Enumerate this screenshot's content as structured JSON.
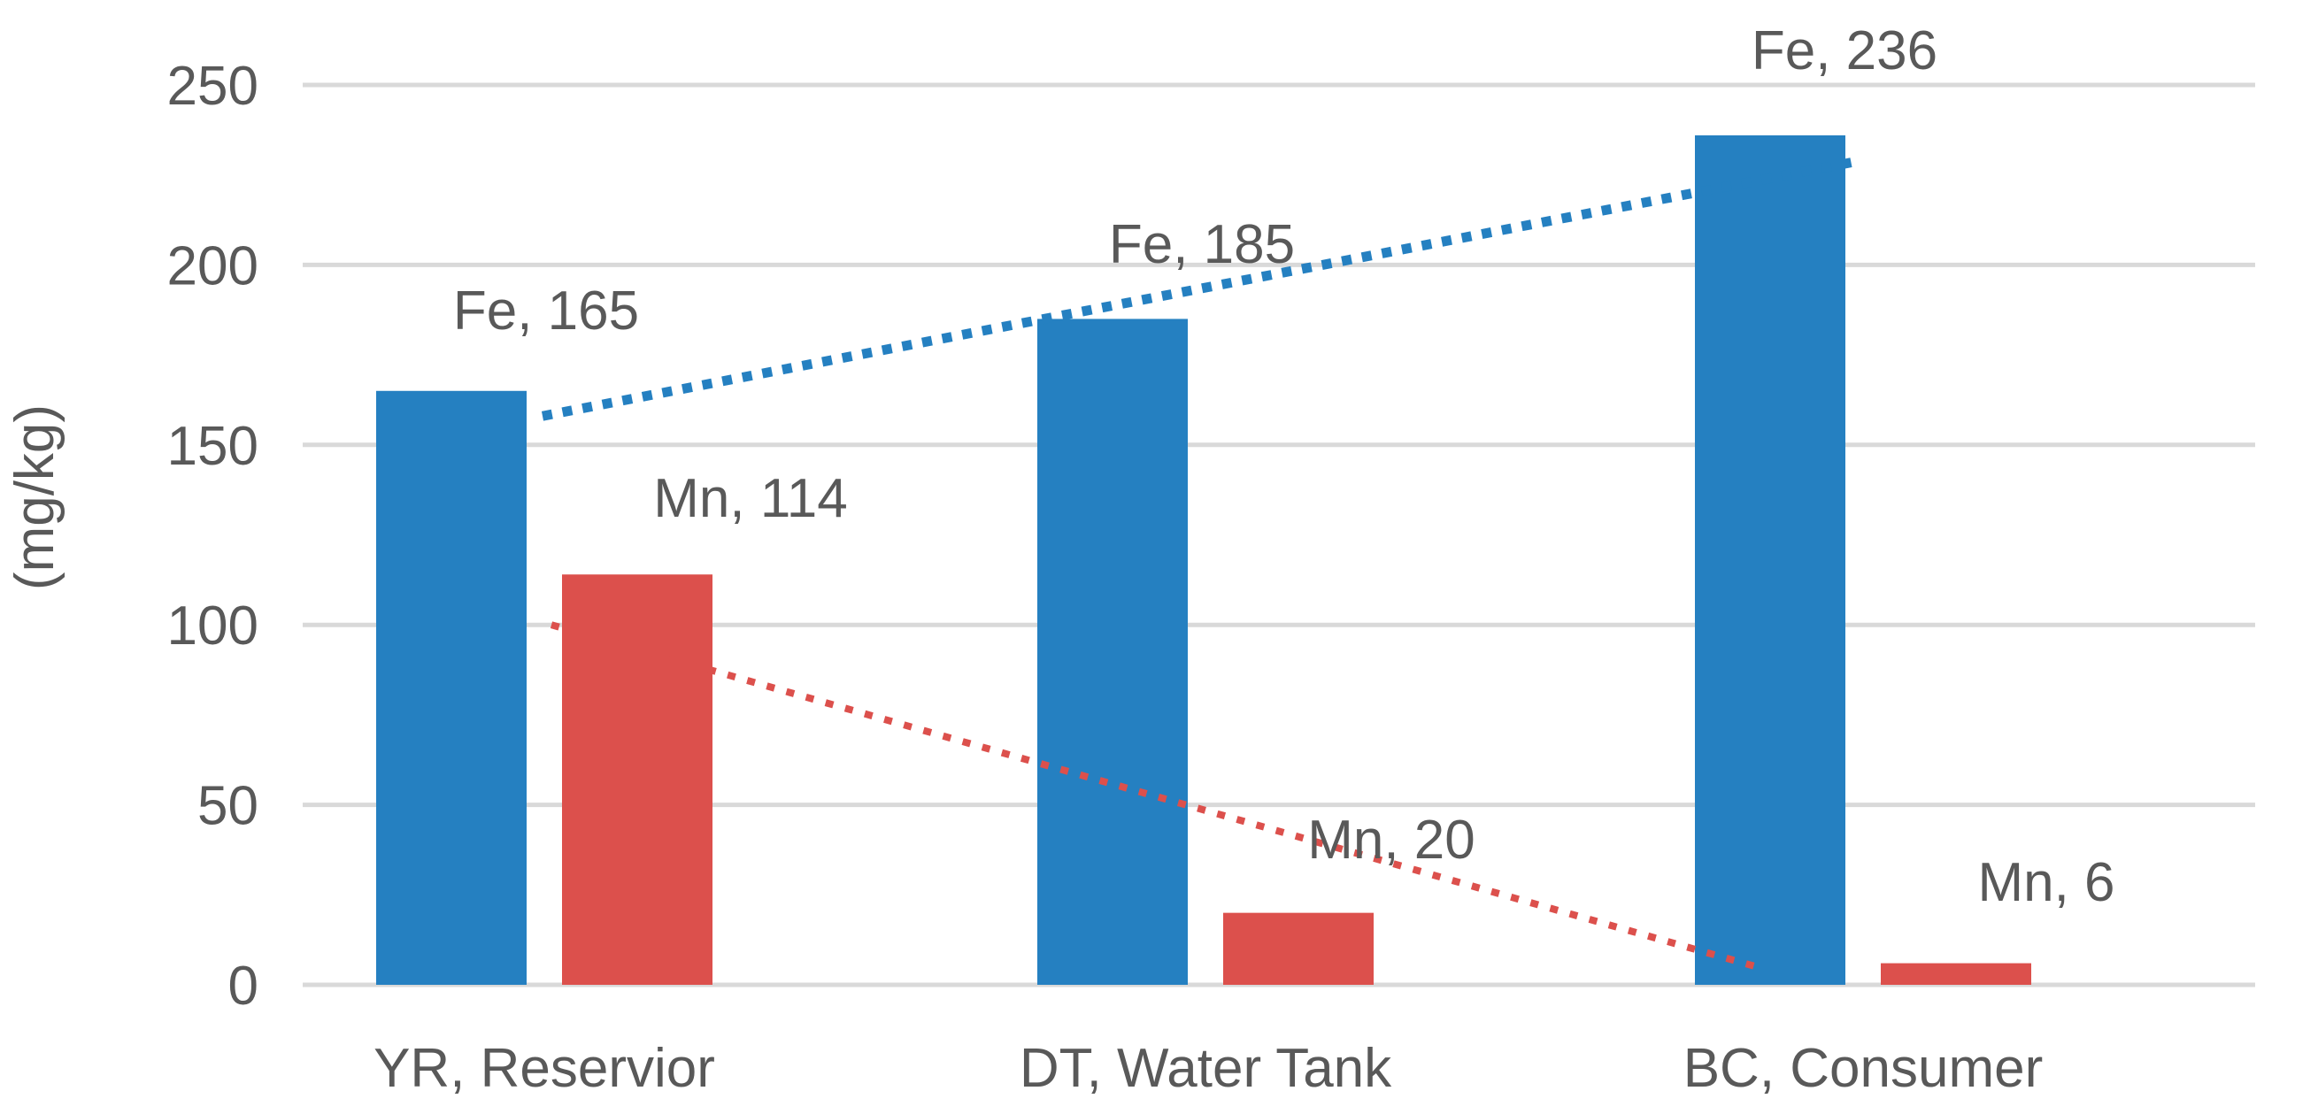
{
  "chart_data": {
    "type": "bar",
    "title": "",
    "xlabel": "",
    "ylabel": "(mg/kg)",
    "ylim": [
      0,
      250
    ],
    "yticks": [
      0,
      50,
      100,
      150,
      200,
      250
    ],
    "grid": true,
    "categories": [
      "YR, Reservior",
      "DT, Water Tank",
      "BC, Consumer"
    ],
    "series": [
      {
        "name": "Fe",
        "color": "#2580c1",
        "values": [
          165,
          185,
          236
        ],
        "labels": [
          "Fe, 165",
          "Fe, 185",
          "Fe, 236"
        ],
        "trendline": {
          "style": "dotted",
          "from": 158,
          "to": 229
        }
      },
      {
        "name": "Mn",
        "color": "#dc504c",
        "values": [
          114,
          20,
          6
        ],
        "labels": [
          "Mn, 114",
          "Mn, 20",
          "Mn, 6"
        ],
        "trendline": {
          "style": "dotted",
          "from": 100,
          "to": 5
        }
      }
    ]
  }
}
